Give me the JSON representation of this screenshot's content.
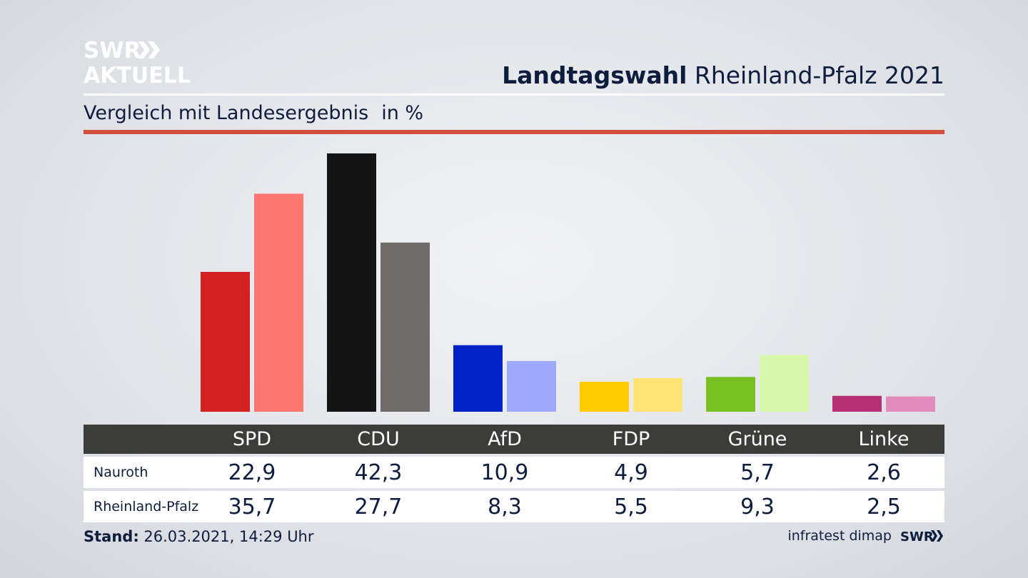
{
  "brand": {
    "logo_line1": "SWR",
    "logo_line2": "AKTUELL"
  },
  "title_bold": "Landtagswahl",
  "title_rest": "Rheinland-Pfalz 2021",
  "subtitle": "Vergleich mit Landesergebnis",
  "unit": "in %",
  "chart_data": {
    "type": "bar",
    "categories": [
      "SPD",
      "CDU",
      "AfD",
      "FDP",
      "Grüne",
      "Linke"
    ],
    "series": [
      {
        "name": "Nauroth",
        "values": [
          22.9,
          42.3,
          10.9,
          4.9,
          5.7,
          2.6
        ]
      },
      {
        "name": "Rheinland-Pfalz",
        "values": [
          35.7,
          27.7,
          8.3,
          5.5,
          9.3,
          2.5
        ]
      }
    ],
    "value_labels": [
      [
        "22,9",
        "42,3",
        "10,9",
        "4,9",
        "5,7",
        "2,6"
      ],
      [
        "35,7",
        "27,7",
        "8,3",
        "5,5",
        "9,3",
        "2,5"
      ]
    ],
    "colors": [
      [
        "#d42020",
        "#141414",
        "#0022c4",
        "#ffcc00",
        "#7ac023",
        "#b73074"
      ],
      [
        "#ff7671",
        "#6e6d6a",
        "#9ea9fd",
        "#ffe374",
        "#d7f7aa",
        "#e18cbb"
      ]
    ],
    "ylim": [
      0,
      45
    ],
    "grid": false
  },
  "footer": {
    "stand_label": "Stand:",
    "stand_value": "26.03.2021, 14:29 Uhr",
    "source": "infratest dimap",
    "source_logo": "SWR"
  }
}
